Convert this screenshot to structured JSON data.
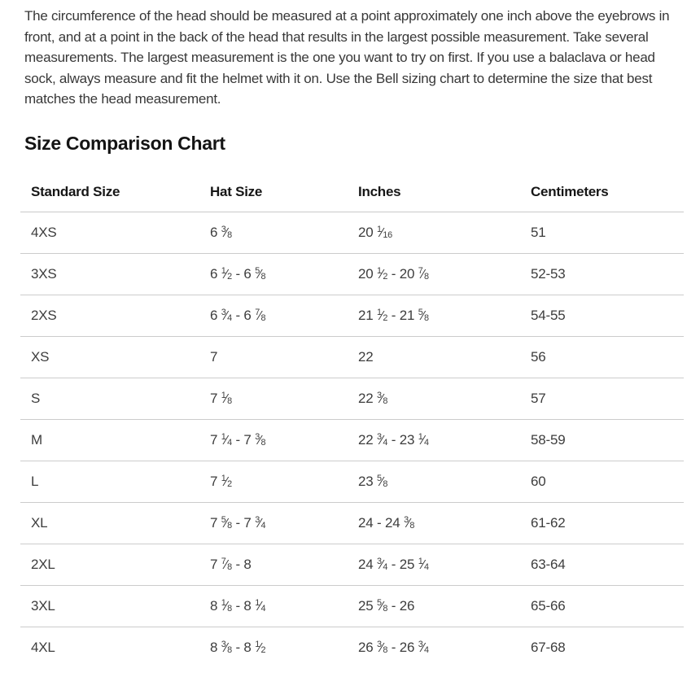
{
  "intro_paragraph": "The circumference of the head should be measured at a point approximately one inch above the eyebrows in front, and at a point in the back of the head that results in the largest possible measurement. Take several measurements. The largest measurement is the one you want to try on first. If you use a balaclava or head sock, always measure and fit the helmet with it on. Use the Bell sizing chart to determine the size that best matches the head measurement.",
  "section_title": "Size Comparison Chart",
  "table": {
    "columns": [
      "Standard Size",
      "Hat Size",
      "Inches",
      "Centimeters"
    ],
    "column_keys": [
      "standard-size",
      "hat-size",
      "inches",
      "centimeters"
    ],
    "rows": [
      [
        "4XS",
        "6 3/8",
        "20 1/16",
        "51"
      ],
      [
        "3XS",
        "6 1/2 - 6 5/8",
        "20 1/2 - 20 7/8",
        "52-53"
      ],
      [
        "2XS",
        "6 3/4 - 6 7/8",
        "21 1/2 - 21 5/8",
        "54-55"
      ],
      [
        "XS",
        "7",
        "22",
        "56"
      ],
      [
        "S",
        "7 1/8",
        "22 3/8",
        "57"
      ],
      [
        "M",
        "7 1/4 - 7 3/8",
        "22 3/4 - 23 1/4",
        "58-59"
      ],
      [
        "L",
        "7 1/2",
        "23 5/8",
        "60"
      ],
      [
        "XL",
        "7 5/8 - 7 3/4",
        "24 - 24 3/8",
        "61-62"
      ],
      [
        "2XL",
        "7 7/8 - 8",
        "24 3/4 - 25 1/4",
        "63-64"
      ],
      [
        "3XL",
        "8 1/8 - 8 1/4",
        "25 5/8 - 26",
        "65-66"
      ],
      [
        "4XL",
        "8 3/8 - 8 1/2",
        "26 3/8 - 26 3/4",
        "67-68"
      ]
    ]
  },
  "colors": {
    "body_text": "#383838",
    "heading_text": "#141414",
    "cell_text": "#3d3d3d",
    "divider": "#cccccc",
    "background": "#ffffff"
  }
}
